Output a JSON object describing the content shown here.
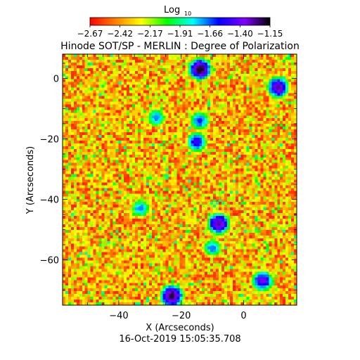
{
  "chart_data": {
    "type": "heatmap",
    "title": "Hinode SOT/SP - MERLIN : Degree of Polarization",
    "colorbar": {
      "label": "Log",
      "label_subscript": "10",
      "ticks": [
        "−2.67",
        "−2.42",
        "−2.17",
        "−1.91",
        "−1.66",
        "−1.40",
        "−1.15"
      ],
      "range": [
        -2.67,
        -1.15
      ],
      "colormap": [
        "#ff0000",
        "#ff8000",
        "#ffff00",
        "#00ff00",
        "#00ffff",
        "#0000ff",
        "#8000ff",
        "#000000"
      ],
      "placement": "top"
    },
    "xlabel": "X (Arcseconds)",
    "ylabel": "Y (Arcseconds)",
    "xlim": [
      -58,
      17
    ],
    "ylim": [
      -75,
      8
    ],
    "xticks": [
      -40,
      -20,
      0
    ],
    "yticks": [
      0,
      -20,
      -40,
      -60
    ],
    "xtick_labels": [
      "−40",
      "−20",
      "0"
    ],
    "ytick_labels": [
      "0",
      "−20",
      "−40",
      "−60"
    ],
    "grid": false,
    "date": "16-Oct-2019 15:05:35.708",
    "features": [
      {
        "x": -14,
        "y": 3,
        "value": -1.2
      },
      {
        "x": 11,
        "y": -3,
        "value": -1.3
      },
      {
        "x": -28,
        "y": -13,
        "value": -1.7
      },
      {
        "x": -14,
        "y": -14,
        "value": -1.6
      },
      {
        "x": -15,
        "y": -21,
        "value": -1.5
      },
      {
        "x": -33,
        "y": -43,
        "value": -1.7
      },
      {
        "x": -8,
        "y": -48,
        "value": -1.3
      },
      {
        "x": -23,
        "y": -72,
        "value": -1.2
      },
      {
        "x": 6,
        "y": -67,
        "value": -1.4
      },
      {
        "x": -10,
        "y": -56,
        "value": -1.7
      }
    ]
  }
}
